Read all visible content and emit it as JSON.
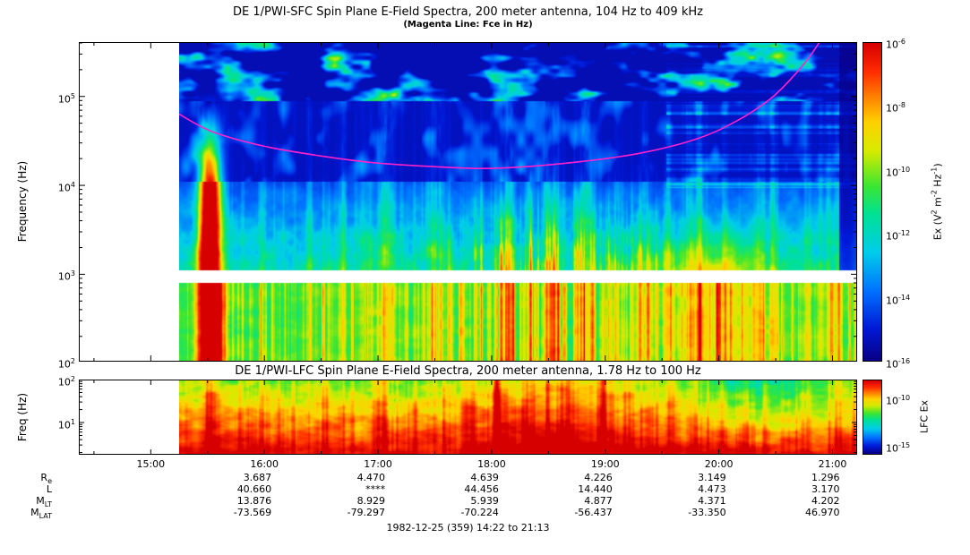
{
  "colors": {
    "background": "#ffffff",
    "frame": "#000000",
    "text": "#000000",
    "fce_line": "#ff22cc",
    "band_gap": "#ffffff"
  },
  "chart_data": [
    {
      "id": "sfc",
      "type": "heatmap",
      "title": "DE 1/PWI-SFC  Spin Plane E-Field Spectra, 200 meter antenna, 104 Hz to 409 kHz",
      "subtitle": "(Magenta Line: Fce in Hz)",
      "ylabel": "Frequency (Hz)",
      "y_scale": "log",
      "y_range_hz": [
        104,
        409000
      ],
      "y_ticks": [
        "10^5",
        "10^4",
        "10^3",
        "10^2"
      ],
      "x_time_range": [
        "14:22",
        "21:13"
      ],
      "x_ticks": [
        "15:00",
        "16:00",
        "17:00",
        "18:00",
        "19:00",
        "20:00",
        "21:00"
      ],
      "data_start_time": "15:15",
      "receiver_gap_hz": [
        810,
        1110
      ],
      "colorbar": {
        "label": "Ex (V^2 m^-2 Hz^-1)",
        "scale": "log",
        "value_range": [
          1e-16,
          1e-06
        ],
        "tick_labels": [
          "10^-6",
          "10^-8",
          "10^-10",
          "10^-12",
          "10^-14",
          "10^-16"
        ]
      },
      "fce_line": {
        "name": "Fce",
        "color": "#ff22cc",
        "points_hour_log10hz": [
          [
            15.25,
            4.8
          ],
          [
            15.55,
            4.6
          ],
          [
            16.0,
            4.44
          ],
          [
            16.5,
            4.33
          ],
          [
            17.0,
            4.25
          ],
          [
            17.5,
            4.21
          ],
          [
            17.9,
            4.19
          ],
          [
            18.3,
            4.21
          ],
          [
            18.8,
            4.27
          ],
          [
            19.3,
            4.36
          ],
          [
            19.8,
            4.52
          ],
          [
            20.15,
            4.72
          ],
          [
            20.45,
            4.97
          ],
          [
            20.65,
            5.22
          ],
          [
            20.8,
            5.45
          ],
          [
            20.92,
            5.68
          ]
        ]
      },
      "features": [
        "Patchy auroral kilometric radiation above 100 kHz (cyan patches on dark blue)",
        "Intense broadband burst near 15:30 reaching ~50 kHz (red/yellow column)",
        "Broadband electrostatic noise bursts 18:00-19:30 below 10 kHz",
        "Continuous green/yellow emissions below a few kHz across the pass",
        "Banded horizontal emissions 10-100 kHz after 20:00",
        "White horizontal strip near 1 kHz is a receiver band gap",
        "Dark (no signal) column at far right edge near 21:10"
      ]
    },
    {
      "id": "lfc",
      "type": "heatmap",
      "title": "DE 1/PWI-LFC  Spin Plane E-Field Spectra, 200 meter antenna, 1.78 Hz to 100 Hz",
      "ylabel": "Freq (Hz)",
      "y_scale": "log",
      "y_range_hz": [
        1.78,
        100
      ],
      "y_ticks": [
        "10^2",
        "10^1"
      ],
      "colorbar": {
        "label": "LFC Ex",
        "scale": "log",
        "value_range": [
          1e-16,
          1e-08
        ],
        "tick_labels": [
          "10^-10",
          "10^-15"
        ]
      },
      "features": [
        "Intense red emission below ~10 Hz across the whole pass",
        "Red burst columns near 15:30 and 18:00-19:20",
        "Weaker green region 20:00-21:00 at the upper frequencies"
      ]
    },
    {
      "id": "ephemeris",
      "type": "table",
      "columns": [
        "16:00",
        "17:00",
        "18:00",
        "19:00",
        "20:00",
        "21:00"
      ],
      "rows": [
        {
          "label": "R_e",
          "values": [
            "3.687",
            "4.470",
            "4.639",
            "4.226",
            "3.149",
            "1.296"
          ]
        },
        {
          "label": "L",
          "values": [
            "40.660",
            "****",
            "44.456",
            "14.440",
            "4.473",
            "3.170"
          ]
        },
        {
          "label": "M_LT",
          "values": [
            "13.876",
            "8.929",
            "5.939",
            "4.877",
            "4.371",
            "4.202"
          ]
        },
        {
          "label": "M_LAT",
          "values": [
            "-73.569",
            "-79.297",
            "-70.224",
            "-56.437",
            "-33.350",
            "46.970"
          ]
        }
      ],
      "footer": "1982-12-25 (359) 14:22 to 21:13"
    }
  ]
}
